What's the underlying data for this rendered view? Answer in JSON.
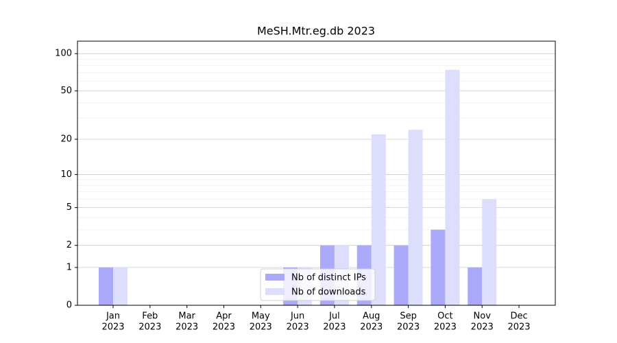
{
  "chart_data": {
    "type": "bar",
    "title": "MeSH.Mtr.eg.db 2023",
    "categories": [
      [
        "Jan",
        "2023"
      ],
      [
        "Feb",
        "2023"
      ],
      [
        "Mar",
        "2023"
      ],
      [
        "Apr",
        "2023"
      ],
      [
        "May",
        "2023"
      ],
      [
        "Jun",
        "2023"
      ],
      [
        "Jul",
        "2023"
      ],
      [
        "Aug",
        "2023"
      ],
      [
        "Sep",
        "2023"
      ],
      [
        "Oct",
        "2023"
      ],
      [
        "Nov",
        "2023"
      ],
      [
        "Dec",
        "2023"
      ]
    ],
    "series": [
      {
        "name": "Nb of distinct IPs",
        "color": "#aaaaf8",
        "values": [
          1,
          0,
          0,
          0,
          0,
          1,
          2,
          2,
          2,
          3,
          1,
          0
        ]
      },
      {
        "name": "Nb of downloads",
        "color": "#ddddfc",
        "values": [
          1,
          0,
          0,
          0,
          0,
          1,
          2,
          22,
          24,
          74,
          6,
          0
        ]
      }
    ],
    "yscale": "log1p",
    "ylim": [
      0,
      126
    ],
    "yticks": [
      0,
      1,
      2,
      5,
      10,
      20,
      50,
      100
    ],
    "minor_yticks": [
      3,
      4,
      6,
      7,
      8,
      9,
      30,
      40,
      60,
      70,
      80,
      90
    ],
    "grid": true,
    "legend": "lower center"
  }
}
